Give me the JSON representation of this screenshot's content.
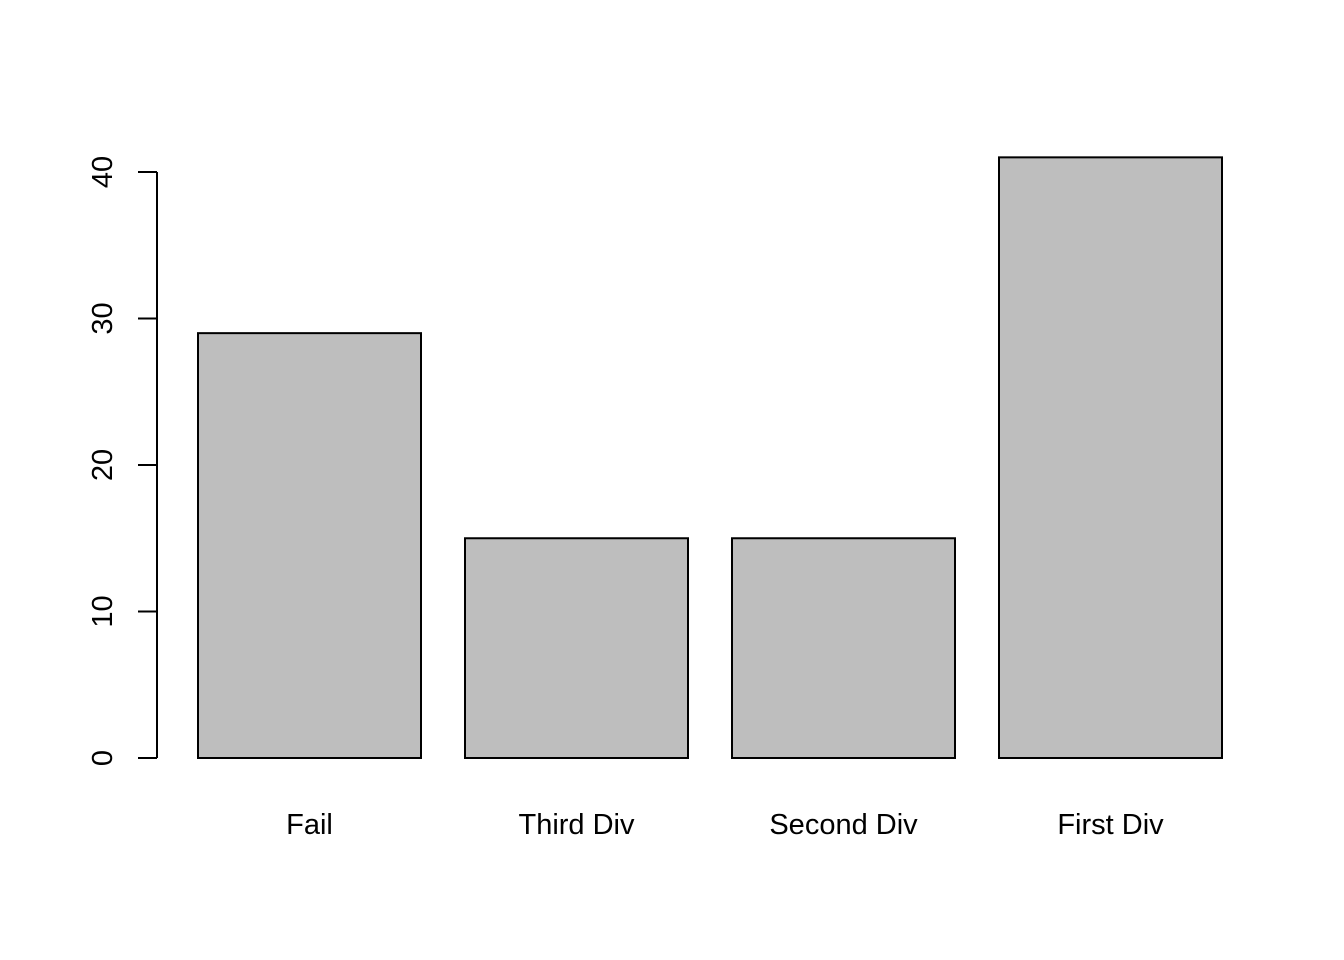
{
  "chart_data": {
    "type": "bar",
    "title": "",
    "xlabel": "",
    "ylabel": "",
    "categories": [
      "Fail",
      "Third Div",
      "Second Div",
      "First Div"
    ],
    "values": [
      29,
      15,
      15,
      41
    ],
    "ylim": [
      0,
      41
    ],
    "yticks": [
      0,
      10,
      20,
      30,
      40
    ],
    "ytick_labels": [
      "0",
      "10",
      "20",
      "30",
      "40"
    ],
    "grid": false,
    "legend": "none",
    "bar_fill": "#bebebe",
    "bar_stroke": "#000000",
    "axis_color": "#000000",
    "background": "#ffffff"
  }
}
